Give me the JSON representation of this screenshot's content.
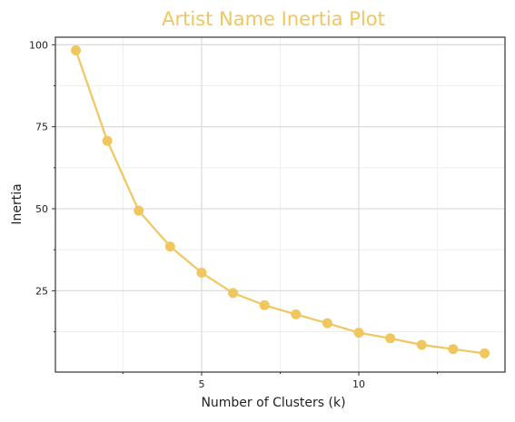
{
  "chart_data": {
    "type": "line",
    "title": "Artist Name Inertia Plot",
    "xlabel": "Number of Clusters (k)",
    "ylabel": "Inertia",
    "x": [
      1,
      2,
      3,
      4,
      5,
      6,
      7,
      8,
      9,
      10,
      11,
      12,
      13,
      14
    ],
    "series": [
      {
        "values": [
          98.3,
          70.7,
          49.4,
          38.5,
          30.5,
          24.3,
          20.6,
          17.8,
          15.1,
          12.2,
          10.5,
          8.5,
          7.2,
          5.9
        ]
      }
    ],
    "xlim": [
      0.35,
      14.65
    ],
    "ylim": [
      0.2,
      102.3
    ],
    "x_ticks": [
      5,
      10
    ],
    "x_tick_labels": [
      "5",
      "10"
    ],
    "x_minor_ticks": [
      2.5,
      7.5,
      12.5
    ],
    "y_ticks": [
      25,
      50,
      75,
      100
    ],
    "y_tick_labels": [
      "25",
      "50",
      "75",
      "100"
    ],
    "y_minor_ticks": [
      12.5,
      37.5,
      62.5,
      87.5
    ],
    "grid": true,
    "legend": "none",
    "colors": {
      "series": "#f0c75e",
      "title": "#f0c75e",
      "grid_major": "#dddddd",
      "grid_minor": "#eeeeee",
      "frame": "#333333",
      "text": "#222222"
    }
  }
}
